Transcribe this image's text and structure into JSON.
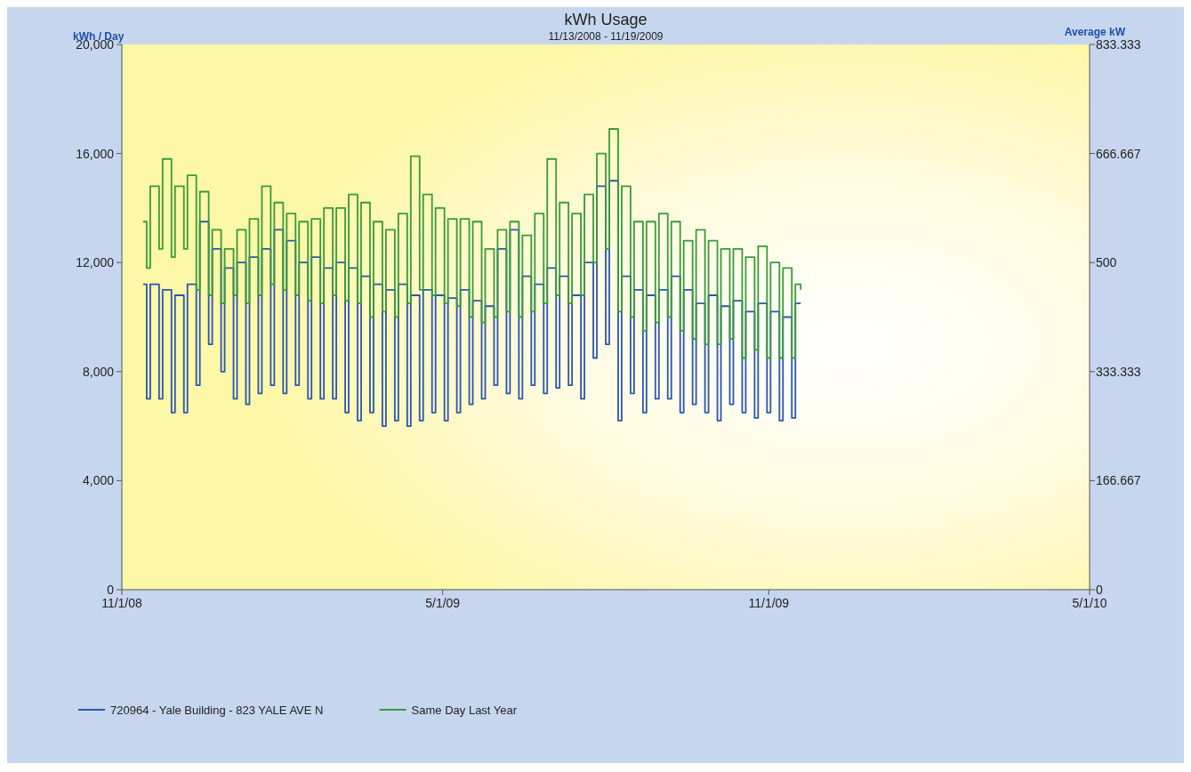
{
  "chart_data": {
    "type": "step",
    "title": "kWh Usage",
    "subtitle": "11/13/2008 - 11/19/2009",
    "ylabel": "kWh / Day",
    "y2label": "Average kW",
    "x": [
      "2008-11-13",
      "2008-11-15",
      "2008-11-17",
      "2008-11-22",
      "2008-11-24",
      "2008-11-29",
      "2008-12-01",
      "2008-12-06",
      "2008-12-08",
      "2008-12-13",
      "2008-12-15",
      "2008-12-20",
      "2008-12-22",
      "2008-12-27",
      "2008-12-29",
      "2009-01-03",
      "2009-01-05",
      "2009-01-10",
      "2009-01-12",
      "2009-01-17",
      "2009-01-19",
      "2009-01-24",
      "2009-01-26",
      "2009-01-31",
      "2009-02-02",
      "2009-02-07",
      "2009-02-09",
      "2009-02-14",
      "2009-02-16",
      "2009-02-21",
      "2009-02-23",
      "2009-02-28",
      "2009-03-02",
      "2009-03-07",
      "2009-03-09",
      "2009-03-14",
      "2009-03-16",
      "2009-03-21",
      "2009-03-23",
      "2009-03-28",
      "2009-03-30",
      "2009-04-04",
      "2009-04-06",
      "2009-04-11",
      "2009-04-13",
      "2009-04-18",
      "2009-04-20",
      "2009-04-25",
      "2009-04-27",
      "2009-05-02",
      "2009-05-04",
      "2009-05-09",
      "2009-05-11",
      "2009-05-16",
      "2009-05-18",
      "2009-05-23",
      "2009-05-25",
      "2009-05-30",
      "2009-06-01",
      "2009-06-06",
      "2009-06-08",
      "2009-06-13",
      "2009-06-15",
      "2009-06-20",
      "2009-06-22",
      "2009-06-27",
      "2009-06-29",
      "2009-07-04",
      "2009-07-06",
      "2009-07-11",
      "2009-07-13",
      "2009-07-18",
      "2009-07-20",
      "2009-07-25",
      "2009-07-27",
      "2009-08-01",
      "2009-08-03",
      "2009-08-08",
      "2009-08-10",
      "2009-08-15",
      "2009-08-17",
      "2009-08-22",
      "2009-08-24",
      "2009-08-29",
      "2009-08-31",
      "2009-09-05",
      "2009-09-07",
      "2009-09-12",
      "2009-09-14",
      "2009-09-19",
      "2009-09-21",
      "2009-09-26",
      "2009-09-28",
      "2009-10-03",
      "2009-10-05",
      "2009-10-10",
      "2009-10-12",
      "2009-10-17",
      "2009-10-19",
      "2009-10-24",
      "2009-10-26",
      "2009-10-31",
      "2009-11-02",
      "2009-11-07",
      "2009-11-09",
      "2009-11-14",
      "2009-11-16",
      "2009-11-19"
    ],
    "series": [
      {
        "name": "720964 - Yale Building - 823 YALE AVE N",
        "color": "#2b55b0",
        "values": [
          11200,
          7000,
          11200,
          7000,
          11000,
          6500,
          10800,
          6500,
          11200,
          7500,
          13500,
          9000,
          12500,
          8000,
          11800,
          7000,
          12000,
          6800,
          12200,
          7200,
          12500,
          7500,
          13200,
          7200,
          12800,
          7500,
          12000,
          7000,
          12200,
          7000,
          11800,
          7000,
          12000,
          6500,
          11800,
          6200,
          11500,
          6500,
          11200,
          6000,
          11000,
          6200,
          11200,
          6000,
          10800,
          6200,
          11000,
          6500,
          10800,
          6200,
          10700,
          6500,
          11000,
          6800,
          10600,
          7000,
          10400,
          7500,
          12500,
          7200,
          13200,
          7000,
          11500,
          7500,
          11200,
          7200,
          11800,
          7400,
          11500,
          7500,
          10800,
          7000,
          12000,
          8500,
          14800,
          9000,
          15000,
          6200,
          11500,
          7200,
          11000,
          6500,
          10800,
          7000,
          11000,
          7000,
          11500,
          6500,
          11000,
          6800,
          10500,
          6500,
          10800,
          6200,
          10400,
          6800,
          10600,
          6500,
          10200,
          6300,
          10500,
          6500,
          10200,
          6200,
          10000,
          6300,
          10500,
          10500
        ]
      },
      {
        "name": "Same Day Last Year",
        "color": "#3a9a3a",
        "values": [
          13500,
          11800,
          14800,
          12500,
          15800,
          12200,
          14800,
          12500,
          15200,
          11000,
          14600,
          10800,
          13200,
          10500,
          12500,
          10800,
          13200,
          10500,
          13600,
          10800,
          14800,
          11200,
          14200,
          11000,
          13800,
          10800,
          13500,
          10600,
          13600,
          10500,
          14000,
          10800,
          14000,
          10600,
          14500,
          10500,
          14200,
          10000,
          13500,
          10200,
          13200,
          10000,
          13800,
          10500,
          15900,
          11000,
          14500,
          10800,
          14000,
          10500,
          13600,
          10400,
          13600,
          10000,
          13500,
          9800,
          12500,
          10000,
          13200,
          10200,
          13500,
          10000,
          13000,
          10200,
          13800,
          10500,
          15800,
          10800,
          14200,
          10500,
          13800,
          10800,
          14500,
          12000,
          16000,
          12500,
          16900,
          10200,
          14800,
          10000,
          13500,
          9500,
          13500,
          9800,
          13800,
          10000,
          13500,
          9500,
          12800,
          9200,
          13200,
          9000,
          12800,
          9000,
          12500,
          9200,
          12500,
          8500,
          12200,
          8800,
          12600,
          8500,
          12000,
          8500,
          11800,
          8500,
          11200,
          11000
        ]
      }
    ],
    "xlim": [
      "2008-11-01",
      "2010-05-01"
    ],
    "xticks": [
      {
        "value": "2008-11-01",
        "label": "11/1/08"
      },
      {
        "value": "2009-05-01",
        "label": "5/1/09"
      },
      {
        "value": "2009-11-01",
        "label": "11/1/09"
      },
      {
        "value": "2010-05-01",
        "label": "5/1/10"
      }
    ],
    "ylim": [
      0,
      20000
    ],
    "yticks": [
      {
        "value": 0,
        "label": "0"
      },
      {
        "value": 4000,
        "label": "4,000"
      },
      {
        "value": 8000,
        "label": "8,000"
      },
      {
        "value": 12000,
        "label": "12,000"
      },
      {
        "value": 16000,
        "label": "16,000"
      },
      {
        "value": 20000,
        "label": "20,000"
      }
    ],
    "y2lim": [
      0,
      833.333
    ],
    "y2ticks": [
      0,
      166.667,
      333.333,
      500,
      666.667,
      833.333
    ],
    "legend": "bottom left",
    "grid": false,
    "line_style": "solid"
  }
}
